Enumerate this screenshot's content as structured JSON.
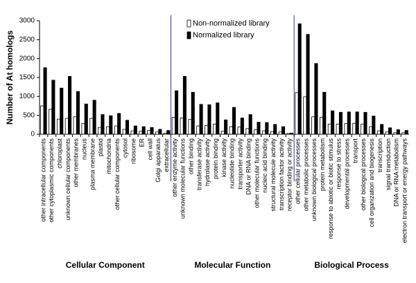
{
  "chart_data": {
    "type": "grouped_bar",
    "y_label": "Number of At homologs",
    "ylim": [
      0,
      3000
    ],
    "yticks": [
      0,
      500,
      1000,
      1500,
      2000,
      2500,
      3000
    ],
    "series": [
      {
        "name": "Non-normalized library",
        "color": "#ffffff"
      },
      {
        "name": "Normalized library",
        "color": "#000000"
      }
    ],
    "groups": [
      {
        "name": "Cellular Component",
        "categories": [
          "other intracellular components",
          "other cytoplasmic components",
          "chloroplast",
          "unknown cellular components",
          "other membranes",
          "nucleus",
          "plasma membrane",
          "plastid",
          "mitochondria",
          "other cellular components",
          "cytosol",
          "ribosome",
          "ER",
          "cell wall",
          "Golgi apparatus",
          "extracellular"
        ],
        "values": [
          [
            750,
            660,
            400,
            420,
            460,
            280,
            420,
            180,
            200,
            220,
            130,
            90,
            80,
            100,
            60,
            30
          ],
          [
            1760,
            1430,
            1220,
            1530,
            1130,
            800,
            900,
            520,
            490,
            550,
            370,
            220,
            200,
            180,
            130,
            100
          ]
        ]
      },
      {
        "name": "Molecular Function",
        "categories": [
          "other enzyme activity",
          "unknown molecular functions",
          "other binding",
          "transferase activity",
          "hydrolase activity",
          "protein binding",
          "kinase activity",
          "nucleotide binding",
          "transporter activity",
          "DNA or RNA binding",
          "other molecular functions",
          "nucleic acid binding",
          "structural molecule activity",
          "transcription factor activity",
          "receptor binding or activity"
        ],
        "values": [
          [
            450,
            430,
            390,
            220,
            230,
            270,
            80,
            200,
            190,
            150,
            120,
            90,
            70,
            60,
            20
          ],
          [
            1150,
            1530,
            1110,
            790,
            780,
            830,
            380,
            710,
            430,
            520,
            320,
            310,
            260,
            200,
            30
          ]
        ]
      },
      {
        "name": "Biological Process",
        "categories": [
          "other cellular processes",
          "other metabolic processes",
          "unknown biological processes",
          "protein metabolism",
          "response to abiotic or biotic stimulus",
          "response to stress",
          "developmental processes",
          "transport",
          "other biological processes",
          "cell organization and biogenesis",
          "transcription",
          "signal transduction",
          "DNA or RNA metabolism",
          "electron transport or energy pathways"
        ],
        "values": [
          [
            1100,
            990,
            460,
            450,
            270,
            270,
            280,
            290,
            270,
            200,
            90,
            60,
            40,
            40
          ],
          [
            2920,
            2640,
            1870,
            1110,
            620,
            580,
            590,
            590,
            580,
            480,
            260,
            170,
            120,
            100
          ]
        ]
      }
    ]
  }
}
